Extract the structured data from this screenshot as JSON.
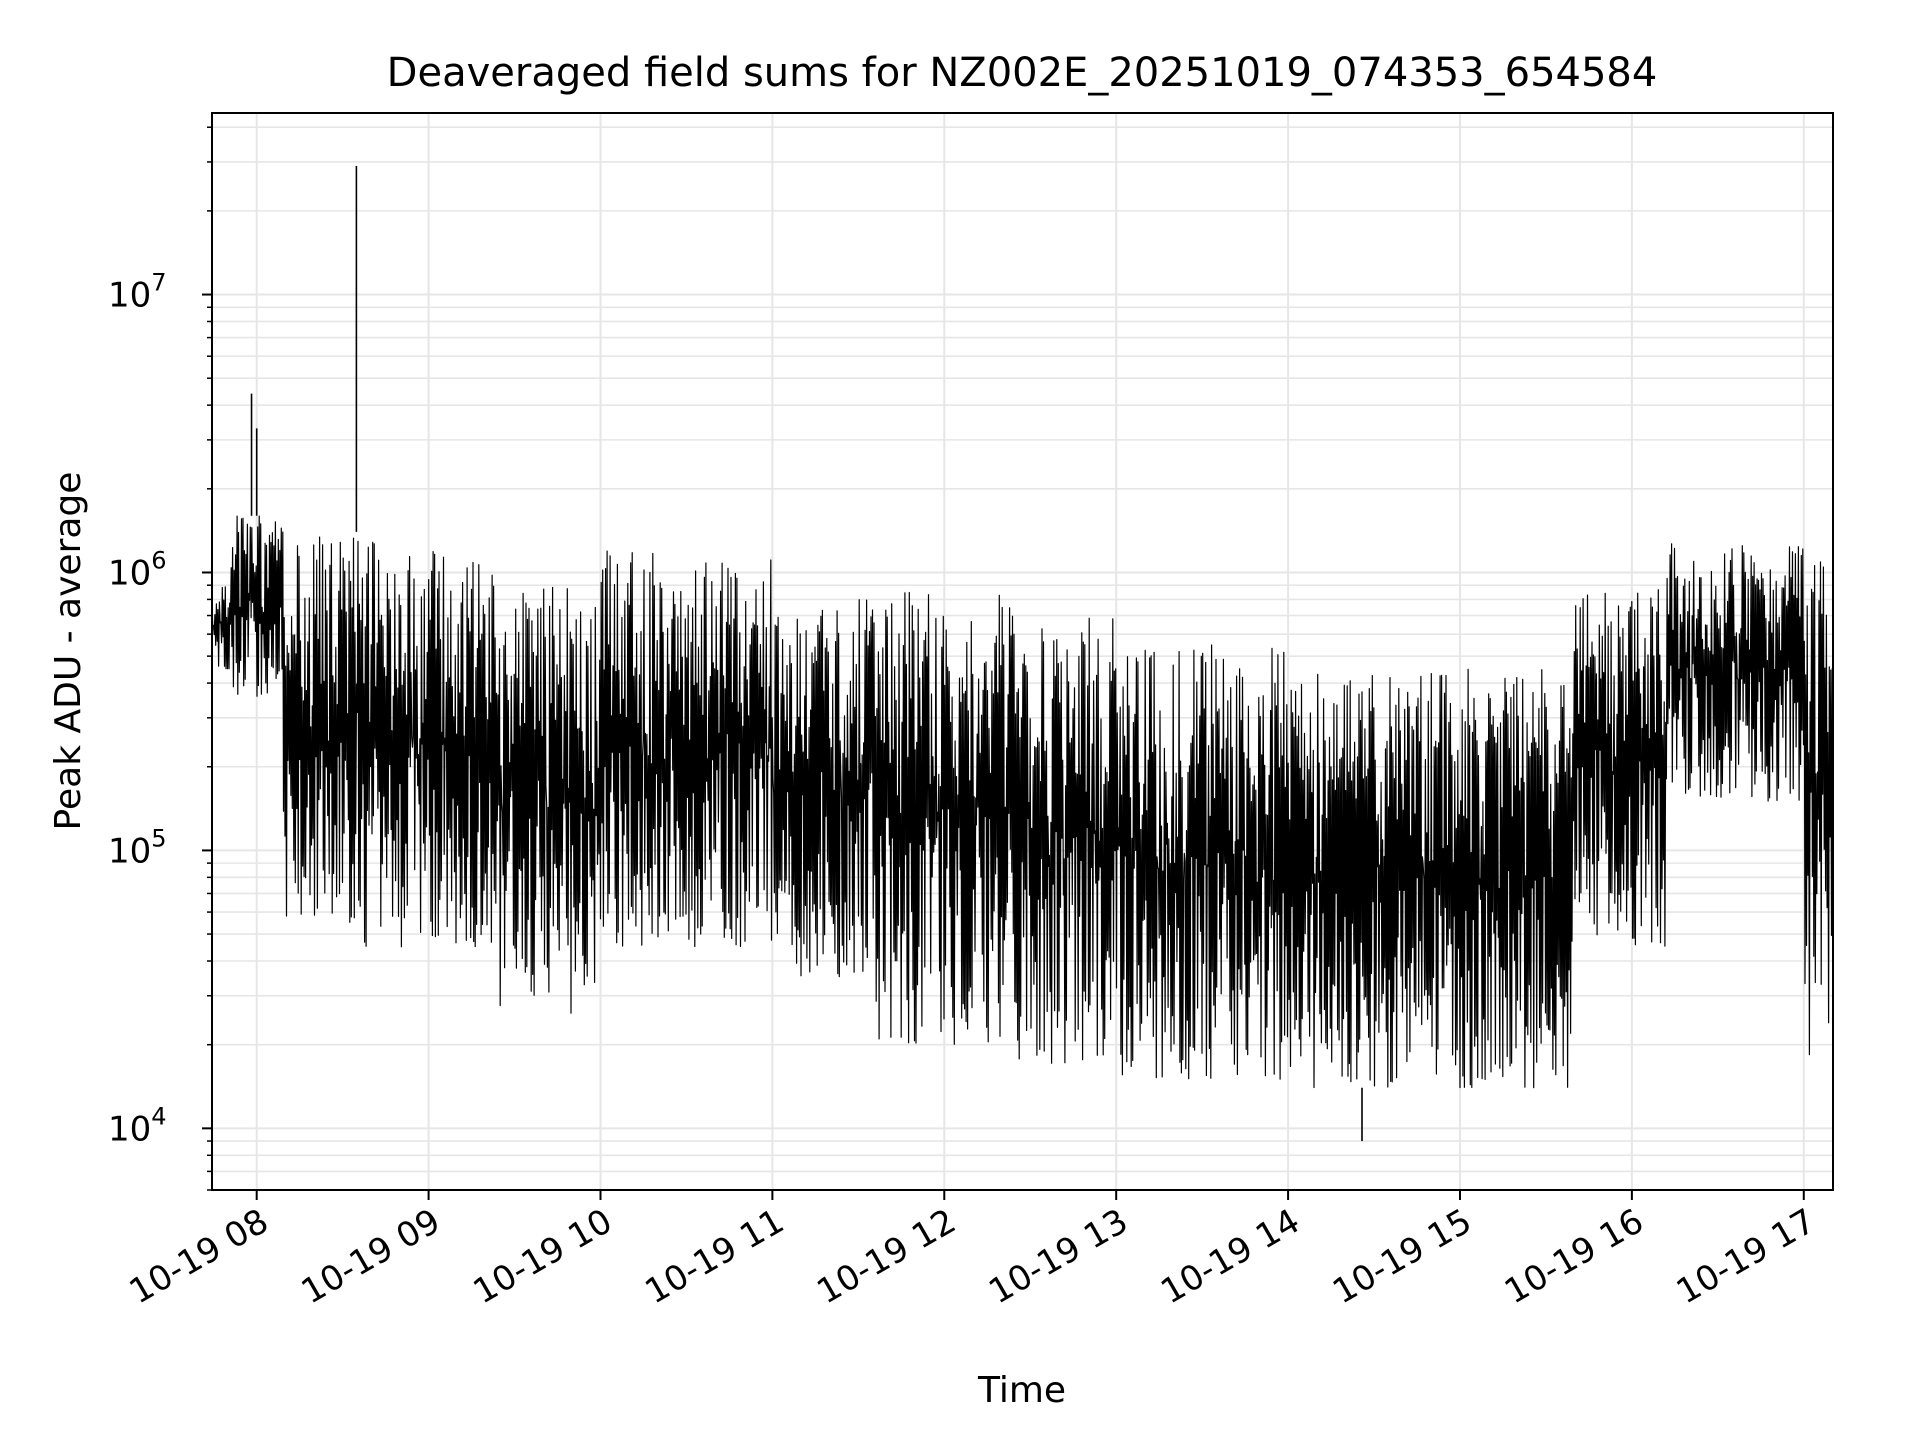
{
  "chart_data": {
    "type": "line",
    "title": "Deaveraged field sums for NZ002E_20251019_074353_654584",
    "xlabel": "Time",
    "ylabel": "Peak ADU - average",
    "yscale": "log",
    "ylim": [
      6000,
      45000000
    ],
    "xlim": [
      7.74,
      17.17
    ],
    "grid": true,
    "line_color": "#000000",
    "grid_color": "#e6e6e6",
    "x_ticks": [
      {
        "value": 8,
        "label": "10-19 08"
      },
      {
        "value": 9,
        "label": "10-19 09"
      },
      {
        "value": 10,
        "label": "10-19 10"
      },
      {
        "value": 11,
        "label": "10-19 11"
      },
      {
        "value": 12,
        "label": "10-19 12"
      },
      {
        "value": 13,
        "label": "10-19 13"
      },
      {
        "value": 14,
        "label": "10-19 14"
      },
      {
        "value": 15,
        "label": "10-19 15"
      },
      {
        "value": 16,
        "label": "10-19 16"
      },
      {
        "value": 17,
        "label": "10-19 17"
      }
    ],
    "y_ticks": [
      {
        "value": 10000,
        "base": "10",
        "exp": "4"
      },
      {
        "value": 100000,
        "base": "10",
        "exp": "5"
      },
      {
        "value": 1000000,
        "base": "10",
        "exp": "6"
      },
      {
        "value": 10000000,
        "base": "10",
        "exp": "7"
      }
    ],
    "envelope_note": "Dense time series; each segment gives approximate typical [low, high] range of Peak ADU - average",
    "envelope": [
      {
        "t0": 7.74,
        "t1": 7.85,
        "low": 450000,
        "high": 900000
      },
      {
        "t0": 7.85,
        "t1": 8.15,
        "low": 350000,
        "high": 1600000
      },
      {
        "t0": 8.15,
        "t1": 8.6,
        "low": 55000,
        "high": 1400000
      },
      {
        "t0": 8.6,
        "t1": 9.4,
        "low": 45000,
        "high": 1300000
      },
      {
        "t0": 9.4,
        "t1": 10.0,
        "low": 25000,
        "high": 900000
      },
      {
        "t0": 10.0,
        "t1": 11.0,
        "low": 45000,
        "high": 1200000
      },
      {
        "t0": 11.0,
        "t1": 11.6,
        "low": 35000,
        "high": 800000
      },
      {
        "t0": 11.6,
        "t1": 12.4,
        "low": 20000,
        "high": 850000
      },
      {
        "t0": 12.4,
        "t1": 13.0,
        "low": 17000,
        "high": 700000
      },
      {
        "t0": 13.0,
        "t1": 14.0,
        "low": 15000,
        "high": 550000
      },
      {
        "t0": 14.0,
        "t1": 14.7,
        "low": 14000,
        "high": 450000
      },
      {
        "t0": 14.7,
        "t1": 15.65,
        "low": 14000,
        "high": 450000
      },
      {
        "t0": 15.65,
        "t1": 16.2,
        "low": 45000,
        "high": 900000
      },
      {
        "t0": 16.2,
        "t1": 17.0,
        "low": 150000,
        "high": 1300000
      },
      {
        "t0": 17.0,
        "t1": 17.17,
        "low": 18000,
        "high": 1200000
      }
    ],
    "notable_points": [
      {
        "x": 8.58,
        "y": 29000000,
        "label": "spike"
      },
      {
        "x": 7.97,
        "y": 4400000,
        "label": "spike"
      },
      {
        "x": 8.0,
        "y": 3300000,
        "label": "spike"
      },
      {
        "x": 14.43,
        "y": 9000,
        "label": "minimum"
      }
    ]
  }
}
